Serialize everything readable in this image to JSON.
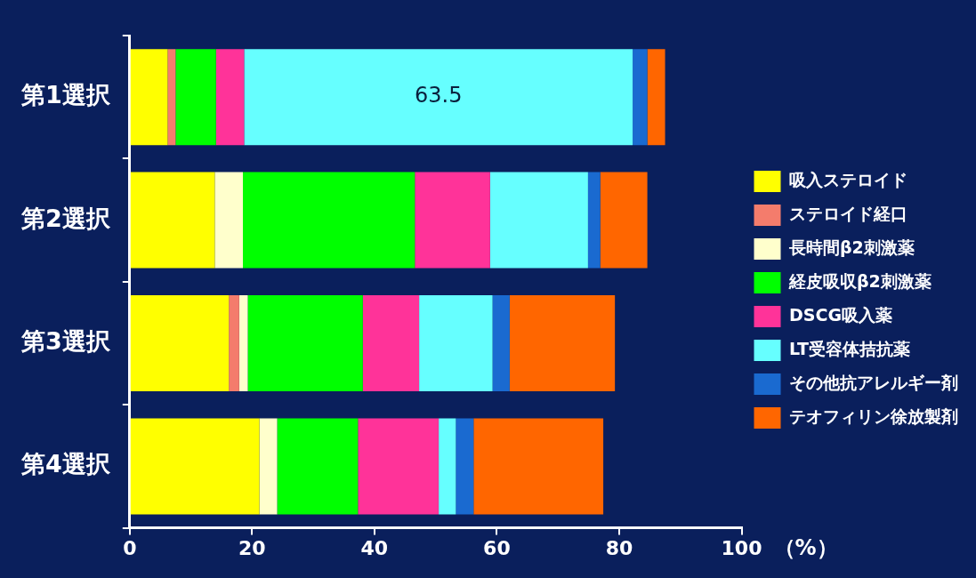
{
  "chart_data": {
    "type": "bar",
    "orientation": "horizontal",
    "stacked": true,
    "categories": [
      "第1選択",
      "第2選択",
      "第3選択",
      "第4選択"
    ],
    "series": [
      {
        "name": "吸入ステロイド",
        "color": "#ffff00",
        "values": [
          6.2,
          13.9,
          16.2,
          21.2
        ]
      },
      {
        "name": "ステロイド経口",
        "color": "#f47c6c",
        "values": [
          1.3,
          0,
          1.7,
          0
        ]
      },
      {
        "name": "長時間β2刺激薬",
        "color": "#ffffcc",
        "values": [
          0,
          4.6,
          1.4,
          2.9
        ]
      },
      {
        "name": "経皮吸収β2刺激薬",
        "color": "#00ff00",
        "values": [
          6.6,
          28.1,
          18.8,
          13.2
        ]
      },
      {
        "name": "DSCG吸入薬",
        "color": "#ff3399",
        "values": [
          4.6,
          12.3,
          9.2,
          13.2
        ]
      },
      {
        "name": "LT受容体拮抗薬",
        "color": "#66ffff",
        "values": [
          63.5,
          16.0,
          12.0,
          2.8
        ],
        "value_labels": [
          "63.5",
          null,
          null,
          null
        ]
      },
      {
        "name": "その他抗アレルギー剤",
        "color": "#1a6ad0",
        "values": [
          2.4,
          2.0,
          2.8,
          2.9
        ]
      },
      {
        "name": "テオフィリン徐放製剤",
        "color": "#ff6600",
        "values": [
          2.9,
          7.7,
          17.2,
          21.2
        ]
      }
    ],
    "xlabel": "（%）",
    "xlim": [
      0,
      100
    ],
    "xticks": [
      0,
      20,
      40,
      60,
      80,
      100
    ],
    "grid": false,
    "legend": "right"
  }
}
